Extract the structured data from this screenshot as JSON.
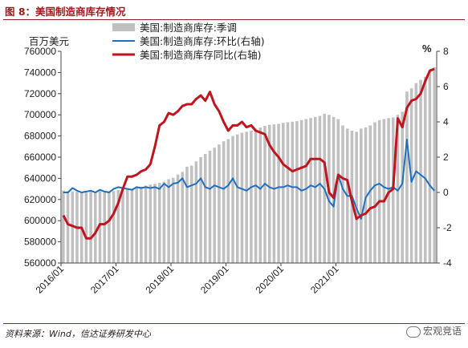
{
  "title": "图 8：美国制造商库存情况",
  "source": "资料来源：Wind，信达证券研发中心",
  "watermark": "宏观竞语",
  "chart_data": {
    "type": "bar+line",
    "left_unit": "百万美元",
    "right_unit": "%",
    "left_ylim": [
      560000,
      760000
    ],
    "left_ticks": [
      760000,
      740000,
      720000,
      700000,
      680000,
      660000,
      640000,
      620000,
      600000,
      580000,
      560000
    ],
    "right_ylim": [
      -4,
      8
    ],
    "right_ticks": [
      8,
      6,
      4,
      2,
      0,
      -2,
      -4
    ],
    "x_ticks": [
      "2016/01",
      "2017/01",
      "2018/01",
      "2019/01",
      "2020/01",
      "2021/01"
    ],
    "x_start": "2016/01",
    "x_end": "2021/07",
    "series": [
      {
        "name": "美国:制造商库存:季调",
        "kind": "bar",
        "axis": "left",
        "color": "#c0c0c0",
        "values": [
          628500,
          628000,
          627800,
          627300,
          627100,
          627300,
          627800,
          627500,
          627900,
          627300,
          627900,
          628000,
          628900,
          629600,
          630400,
          630100,
          631600,
          632000,
          633100,
          634100,
          634800,
          635800,
          636800,
          639200,
          640500,
          643600,
          646100,
          651000,
          652000,
          656000,
          660000,
          663000,
          666000,
          669000,
          672000,
          675000,
          677000,
          680000,
          681500,
          683000,
          684000,
          685000,
          687000,
          688000,
          689500,
          690500,
          691000,
          691500,
          692500,
          693000,
          693500,
          694000,
          695000,
          696000,
          697000,
          698000,
          699000,
          701000,
          700000,
          698000,
          696000,
          690000,
          687000,
          685000,
          684000,
          687000,
          688000,
          690000,
          693000,
          695000,
          696000,
          697000,
          697500,
          700000,
          703000,
          722000,
          725000,
          730000,
          733000,
          736000,
          742000,
          745000
        ]
      },
      {
        "name": "美国:制造商库存:环比(右轴)",
        "kind": "line",
        "axis": "right",
        "color": "#1f6fbf",
        "values": [
          0.0,
          0.0,
          0.25,
          0.1,
          0.0,
          0.05,
          0.1,
          0.0,
          0.15,
          0.05,
          0.0,
          0.2,
          0.3,
          0.25,
          0.2,
          0.15,
          0.3,
          0.25,
          0.3,
          0.25,
          0.3,
          0.2,
          0.5,
          0.3,
          0.5,
          0.55,
          0.8,
          0.3,
          0.4,
          0.5,
          0.8,
          0.3,
          0.2,
          0.4,
          0.3,
          0.2,
          0.4,
          0.8,
          0.3,
          0.2,
          0.1,
          0.3,
          0.4,
          0.2,
          0.5,
          0.3,
          0.2,
          0.3,
          0.3,
          0.4,
          0.3,
          0.3,
          0.1,
          0.2,
          0.4,
          0.3,
          0.5,
          0.2,
          -0.5,
          -0.8,
          1.0,
          0.2,
          -0.2,
          -0.2,
          -0.9,
          -1.5,
          -0.3,
          0.1,
          0.4,
          0.5,
          0.3,
          0.2,
          0.3,
          0.1,
          0.5,
          3.0,
          0.6,
          1.2,
          1.0,
          0.8,
          0.4,
          0.1
        ]
      },
      {
        "name": "美国:制造商库存同比(右轴)",
        "kind": "line",
        "axis": "right",
        "color": "#c0141f",
        "values": [
          -1.3,
          -1.8,
          -1.9,
          -2.0,
          -2.0,
          -2.6,
          -2.6,
          -2.3,
          -1.8,
          -1.8,
          -1.6,
          -1.2,
          -0.6,
          0.2,
          0.9,
          0.9,
          1.0,
          1.2,
          1.3,
          1.6,
          2.6,
          3.8,
          4.0,
          4.5,
          4.4,
          4.6,
          4.9,
          5.0,
          5.0,
          5.3,
          5.5,
          5.2,
          5.7,
          5.0,
          4.6,
          4.0,
          3.5,
          3.8,
          3.8,
          4.0,
          3.7,
          3.8,
          3.5,
          3.4,
          3.3,
          2.7,
          2.3,
          2.0,
          1.6,
          1.4,
          1.2,
          1.3,
          1.4,
          1.5,
          1.9,
          1.9,
          1.9,
          1.7,
          0.0,
          -0.3,
          1.0,
          0.8,
          0.7,
          -0.5,
          -1.5,
          -1.3,
          -1.2,
          -0.9,
          -0.8,
          -0.5,
          -0.5,
          0.0,
          0.2,
          4.2,
          3.7,
          4.8,
          5.2,
          5.3,
          5.6,
          6.3,
          6.9,
          7.0
        ]
      }
    ],
    "grid": false,
    "legend": "top-left"
  }
}
